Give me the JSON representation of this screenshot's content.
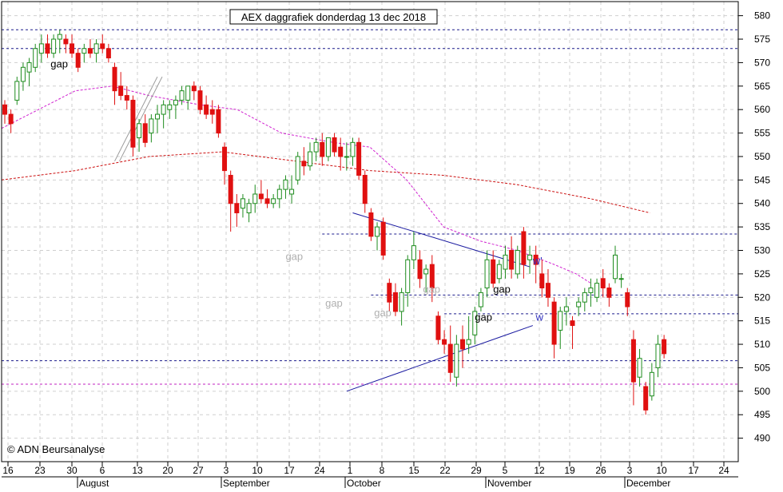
{
  "chart_data": {
    "type": "candlestick",
    "title": "AEX daggrafiek donderdag 13 dec 2018",
    "copyright": "© ADN Beursanalyse",
    "ylim": [
      485,
      583
    ],
    "yticks": [
      490,
      495,
      500,
      505,
      510,
      515,
      520,
      525,
      530,
      535,
      540,
      545,
      550,
      555,
      560,
      565,
      570,
      575,
      580
    ],
    "x_tick_labels": [
      "16",
      "23",
      "30",
      "6",
      "13",
      "20",
      "27",
      "3",
      "10",
      "17",
      "24",
      "1",
      "8",
      "15",
      "22",
      "29",
      "5",
      "12",
      "19",
      "26",
      "3",
      "10",
      "17",
      "24"
    ],
    "month_labels": [
      "August",
      "September",
      "October",
      "November",
      "December"
    ],
    "grid": true,
    "candles": [
      [
        561,
        562,
        557,
        559
      ],
      [
        559,
        560,
        555,
        557
      ],
      [
        562,
        567,
        561,
        566
      ],
      [
        566,
        570,
        564,
        569
      ],
      [
        568,
        571,
        565,
        570
      ],
      [
        569,
        574,
        568,
        573
      ],
      [
        572,
        576,
        570,
        574
      ],
      [
        574,
        576,
        571,
        572
      ],
      [
        572,
        576,
        571,
        575
      ],
      [
        575,
        577,
        572,
        576
      ],
      [
        575,
        576,
        572,
        574
      ],
      [
        574,
        576,
        571,
        572
      ],
      [
        572,
        573,
        568,
        569
      ],
      [
        572,
        574,
        570,
        573
      ],
      [
        573,
        575,
        571,
        572
      ],
      [
        572,
        575,
        570,
        574
      ],
      [
        574,
        576,
        572,
        573
      ],
      [
        573,
        574,
        570,
        571
      ],
      [
        569,
        570,
        561,
        564
      ],
      [
        565,
        568,
        562,
        563
      ],
      [
        563,
        565,
        560,
        562
      ],
      [
        562,
        563,
        550,
        552
      ],
      [
        554,
        558,
        551,
        557
      ],
      [
        557,
        559,
        552,
        553
      ],
      [
        555,
        559,
        553,
        558
      ],
      [
        558,
        561,
        555,
        559
      ],
      [
        559,
        562,
        556,
        561
      ],
      [
        560,
        562,
        558,
        561
      ],
      [
        561,
        563,
        558,
        562
      ],
      [
        562,
        565,
        561,
        564
      ],
      [
        562,
        565,
        560,
        565
      ],
      [
        565,
        566,
        562,
        564
      ],
      [
        564,
        565,
        559,
        560
      ],
      [
        561,
        563,
        558,
        559
      ],
      [
        560,
        562,
        557,
        559
      ],
      [
        560,
        561,
        554,
        555
      ],
      [
        552,
        553,
        544,
        547
      ],
      [
        546,
        547,
        534,
        540
      ],
      [
        540,
        542,
        535,
        538
      ],
      [
        539,
        542,
        537,
        541
      ],
      [
        538,
        541,
        536,
        540
      ],
      [
        540,
        544,
        538,
        542
      ],
      [
        542,
        545,
        540,
        541
      ],
      [
        541,
        543,
        539,
        540
      ],
      [
        540,
        542,
        539,
        541
      ],
      [
        541,
        544,
        539,
        543
      ],
      [
        543,
        546,
        541,
        545
      ],
      [
        542,
        546,
        540,
        543
      ],
      [
        545,
        551,
        544,
        550
      ],
      [
        549,
        552,
        546,
        548
      ],
      [
        548,
        553,
        547,
        551
      ],
      [
        551,
        554,
        549,
        553
      ],
      [
        553,
        555,
        548,
        550
      ],
      [
        550,
        554,
        549,
        554
      ],
      [
        554,
        555,
        550,
        551
      ],
      [
        552,
        554,
        547,
        550
      ],
      [
        550,
        553,
        547,
        550
      ],
      [
        550,
        554,
        548,
        553
      ],
      [
        553,
        554,
        545,
        546
      ],
      [
        546,
        547,
        538,
        540
      ],
      [
        538,
        539,
        532,
        533
      ],
      [
        533,
        536,
        530,
        535
      ],
      [
        536,
        537,
        528,
        529
      ],
      [
        523,
        524,
        517,
        519
      ],
      [
        521,
        523,
        516,
        517
      ],
      [
        517,
        522,
        514,
        521
      ],
      [
        521,
        529,
        518,
        528
      ],
      [
        528,
        534,
        526,
        531
      ],
      [
        528,
        530,
        522,
        524
      ],
      [
        525,
        527,
        521,
        526
      ],
      [
        527,
        529,
        519,
        522
      ],
      [
        516,
        517,
        510,
        511
      ],
      [
        511,
        513,
        508,
        510
      ],
      [
        510,
        514,
        502,
        504
      ],
      [
        503,
        512,
        501,
        510
      ],
      [
        511,
        514,
        505,
        509
      ],
      [
        510,
        516,
        508,
        511
      ],
      [
        512,
        518,
        510,
        517
      ],
      [
        518,
        522,
        517,
        521
      ],
      [
        522,
        530,
        520,
        528
      ],
      [
        528,
        530,
        522,
        523
      ],
      [
        524,
        528,
        523,
        527
      ],
      [
        526,
        531,
        524,
        529
      ],
      [
        530,
        533,
        524,
        526
      ],
      [
        525,
        531,
        524,
        530
      ],
      [
        534,
        535,
        524,
        527
      ],
      [
        528,
        531,
        525,
        529
      ],
      [
        529,
        531,
        523,
        527
      ],
      [
        525,
        528,
        520,
        522
      ],
      [
        523,
        526,
        518,
        520
      ],
      [
        519,
        520,
        507,
        510
      ],
      [
        513,
        518,
        509,
        517
      ],
      [
        517,
        520,
        514,
        518
      ],
      [
        515,
        516,
        509,
        514
      ],
      [
        518,
        520,
        516,
        519
      ],
      [
        519,
        522,
        517,
        521
      ],
      [
        521,
        524,
        518,
        522
      ],
      [
        520,
        524,
        519,
        523
      ],
      [
        524,
        526,
        520,
        522
      ],
      [
        522,
        523,
        518,
        520
      ],
      [
        524,
        531,
        523,
        529
      ],
      [
        524,
        525,
        522,
        524
      ],
      [
        521,
        522,
        516,
        518
      ],
      [
        511,
        513,
        497,
        502
      ],
      [
        503,
        509,
        501,
        507
      ],
      [
        501,
        502,
        495,
        496
      ],
      [
        499,
        506,
        498,
        504
      ],
      [
        505,
        512,
        503,
        510
      ],
      [
        511,
        512,
        507,
        508
      ]
    ],
    "ma_short": [
      [
        0,
        556
      ],
      [
        0.05,
        560
      ],
      [
        0.1,
        564
      ],
      [
        0.15,
        565
      ],
      [
        0.2,
        563
      ],
      [
        0.27,
        561
      ],
      [
        0.32,
        560
      ],
      [
        0.38,
        555
      ],
      [
        0.45,
        553
      ],
      [
        0.5,
        552
      ],
      [
        0.55,
        545
      ],
      [
        0.6,
        535
      ],
      [
        0.65,
        532
      ],
      [
        0.7,
        530
      ],
      [
        0.75,
        527
      ],
      [
        0.78,
        525
      ],
      [
        0.8,
        523
      ]
    ],
    "ma_long": [
      [
        0,
        545
      ],
      [
        0.1,
        547
      ],
      [
        0.2,
        550
      ],
      [
        0.3,
        551
      ],
      [
        0.4,
        549
      ],
      [
        0.45,
        548
      ],
      [
        0.5,
        547
      ],
      [
        0.6,
        546
      ],
      [
        0.7,
        544
      ],
      [
        0.8,
        541
      ],
      [
        0.88,
        538
      ]
    ],
    "annotations": [
      {
        "text": "gap",
        "x": 7.5,
        "y": 569,
        "color": "#000000"
      },
      {
        "text": "gap",
        "x": 46,
        "y": 528,
        "color": "#b0b0b0"
      },
      {
        "text": "gap",
        "x": 52.5,
        "y": 518,
        "color": "#b0b0b0"
      },
      {
        "text": "gap",
        "x": 60.5,
        "y": 516,
        "color": "#b0b0b0"
      },
      {
        "text": "gap",
        "x": 68.5,
        "y": 521,
        "color": "#b0b0b0"
      },
      {
        "text": "gap",
        "x": 80,
        "y": 521,
        "color": "#000000"
      },
      {
        "text": "gap",
        "x": 77,
        "y": 515,
        "color": "#000000"
      },
      {
        "text": "w'",
        "x": 86.5,
        "y": 527,
        "color": "#3030c0"
      },
      {
        "text": "w",
        "x": 87,
        "y": 515,
        "color": "#3030c0"
      }
    ],
    "hlines": [
      {
        "y": 577,
        "color": "#1a1a8c"
      },
      {
        "y": 573,
        "color": "#1a1a8c"
      },
      {
        "y": 533.5,
        "color": "#1a1a8c",
        "from": 52
      },
      {
        "y": 520.5,
        "color": "#1a1a8c",
        "from": 60
      },
      {
        "y": 516.5,
        "color": "#1a1a8c",
        "from": 72
      },
      {
        "y": 506.5,
        "color": "#1a1a8c"
      },
      {
        "y": 501.5,
        "color": "#c020c0"
      }
    ],
    "trendlines": [
      {
        "from": [
          57,
          538
        ],
        "to": [
          86,
          526.5
        ]
      },
      {
        "from": [
          56,
          500
        ],
        "to": [
          86.5,
          514
        ]
      },
      {
        "from": [
          18,
          549
        ],
        "to": [
          25,
          567
        ]
      }
    ],
    "colors": {
      "up": "#1e8c1e",
      "down": "#e01010",
      "ma_short": "#d020d0",
      "ma_long": "#cc1010",
      "trend": "#1a1aa0"
    }
  }
}
